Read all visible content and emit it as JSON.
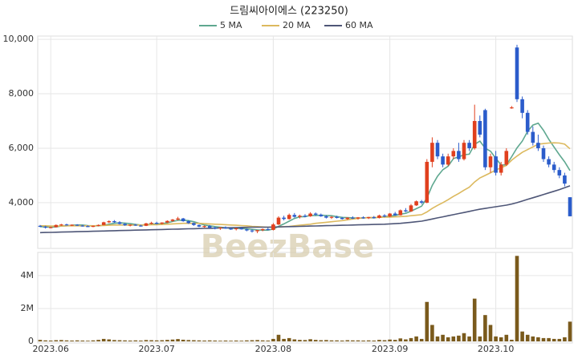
{
  "chart_data": {
    "type": "candlestick",
    "title": "드림씨아이에스 (223250)",
    "watermark": "BeezBase",
    "categories": [
      null,
      null,
      "2023.06",
      null,
      null,
      null,
      null,
      null,
      null,
      null,
      null,
      null,
      null,
      null,
      null,
      null,
      null,
      null,
      null,
      null,
      null,
      null,
      "2023.07",
      null,
      null,
      null,
      null,
      null,
      null,
      null,
      null,
      null,
      null,
      null,
      null,
      null,
      null,
      null,
      null,
      null,
      null,
      null,
      null,
      null,
      "2023.08",
      null,
      null,
      null,
      null,
      null,
      null,
      null,
      null,
      null,
      null,
      null,
      null,
      null,
      null,
      null,
      null,
      null,
      null,
      null,
      null,
      null,
      "2023.09",
      null,
      null,
      null,
      null,
      null,
      null,
      null,
      null,
      null,
      null,
      null,
      null,
      null,
      null,
      null,
      null,
      null,
      null,
      null,
      "2023.10",
      null,
      null,
      null,
      null,
      null,
      null,
      null,
      null,
      null,
      null,
      null,
      null,
      null,
      null
    ],
    "up_color": "#e0401e",
    "down_color": "#2b5ccb",
    "ohlc": [
      [
        3150,
        3180,
        3100,
        3120
      ],
      [
        3120,
        3150,
        3050,
        3080
      ],
      [
        3080,
        3120,
        3060,
        3100
      ],
      [
        3100,
        3200,
        3090,
        3180
      ],
      [
        3180,
        3220,
        3150,
        3200
      ],
      [
        3200,
        3230,
        3160,
        3170
      ],
      [
        3170,
        3200,
        3140,
        3190
      ],
      [
        3190,
        3210,
        3150,
        3160
      ],
      [
        3160,
        3180,
        3120,
        3140
      ],
      [
        3140,
        3170,
        3100,
        3110
      ],
      [
        3110,
        3160,
        3100,
        3150
      ],
      [
        3150,
        3200,
        3130,
        3180
      ],
      [
        3180,
        3300,
        3170,
        3280
      ],
      [
        3280,
        3350,
        3250,
        3320
      ],
      [
        3320,
        3360,
        3260,
        3280
      ],
      [
        3280,
        3320,
        3200,
        3220
      ],
      [
        3220,
        3250,
        3150,
        3170
      ],
      [
        3170,
        3200,
        3130,
        3190
      ],
      [
        3190,
        3220,
        3150,
        3160
      ],
      [
        3160,
        3190,
        3120,
        3150
      ],
      [
        3150,
        3260,
        3140,
        3240
      ],
      [
        3240,
        3300,
        3200,
        3260
      ],
      [
        3260,
        3300,
        3200,
        3230
      ],
      [
        3230,
        3280,
        3200,
        3270
      ],
      [
        3270,
        3350,
        3250,
        3330
      ],
      [
        3330,
        3400,
        3300,
        3380
      ],
      [
        3380,
        3480,
        3350,
        3420
      ],
      [
        3420,
        3440,
        3300,
        3320
      ],
      [
        3320,
        3350,
        3220,
        3250
      ],
      [
        3250,
        3270,
        3150,
        3180
      ],
      [
        3180,
        3200,
        3100,
        3120
      ],
      [
        3120,
        3160,
        3080,
        3140
      ],
      [
        3140,
        3180,
        3060,
        3080
      ],
      [
        3080,
        3120,
        3020,
        3060
      ],
      [
        3060,
        3100,
        3000,
        3090
      ],
      [
        3090,
        3130,
        3040,
        3050
      ],
      [
        3050,
        3080,
        3000,
        3030
      ],
      [
        3030,
        3070,
        2980,
        3060
      ],
      [
        3060,
        3090,
        3010,
        3020
      ],
      [
        3020,
        3050,
        2950,
        2980
      ],
      [
        2980,
        3020,
        2900,
        2950
      ],
      [
        2950,
        3000,
        2880,
        2990
      ],
      [
        2990,
        3050,
        2950,
        3030
      ],
      [
        3030,
        3080,
        2990,
        3000
      ],
      [
        3000,
        3250,
        2980,
        3200
      ],
      [
        3200,
        3500,
        3180,
        3450
      ],
      [
        3450,
        3520,
        3350,
        3400
      ],
      [
        3400,
        3600,
        3380,
        3550
      ],
      [
        3550,
        3620,
        3450,
        3480
      ],
      [
        3480,
        3560,
        3420,
        3520
      ],
      [
        3520,
        3580,
        3460,
        3500
      ],
      [
        3500,
        3650,
        3480,
        3600
      ],
      [
        3600,
        3640,
        3520,
        3560
      ],
      [
        3560,
        3600,
        3480,
        3500
      ],
      [
        3500,
        3540,
        3420,
        3450
      ],
      [
        3450,
        3500,
        3400,
        3480
      ],
      [
        3480,
        3520,
        3420,
        3440
      ],
      [
        3440,
        3480,
        3380,
        3400
      ],
      [
        3400,
        3460,
        3370,
        3450
      ],
      [
        3450,
        3500,
        3400,
        3420
      ],
      [
        3420,
        3470,
        3380,
        3460
      ],
      [
        3460,
        3500,
        3410,
        3430
      ],
      [
        3430,
        3480,
        3400,
        3470
      ],
      [
        3470,
        3510,
        3420,
        3440
      ],
      [
        3440,
        3560,
        3420,
        3530
      ],
      [
        3530,
        3580,
        3460,
        3490
      ],
      [
        3490,
        3620,
        3470,
        3600
      ],
      [
        3600,
        3660,
        3520,
        3540
      ],
      [
        3540,
        3750,
        3530,
        3720
      ],
      [
        3720,
        3800,
        3650,
        3680
      ],
      [
        3680,
        3950,
        3660,
        3900
      ],
      [
        3900,
        4080,
        3880,
        4050
      ],
      [
        4050,
        4100,
        3950,
        4000
      ],
      [
        4000,
        5600,
        3980,
        5500
      ],
      [
        5500,
        6400,
        5300,
        6200
      ],
      [
        6200,
        6300,
        5600,
        5700
      ],
      [
        5700,
        5800,
        5300,
        5400
      ],
      [
        5400,
        5800,
        5350,
        5700
      ],
      [
        5700,
        6000,
        5600,
        5900
      ],
      [
        5900,
        6200,
        5500,
        5600
      ],
      [
        5600,
        6300,
        5550,
        6200
      ],
      [
        6200,
        6300,
        5900,
        6000
      ],
      [
        6000,
        7600,
        5950,
        7000
      ],
      [
        7000,
        7200,
        6400,
        6500
      ],
      [
        7400,
        7450,
        5200,
        5300
      ],
      [
        5300,
        5800,
        5100,
        5700
      ],
      [
        5700,
        5900,
        5000,
        5100
      ],
      [
        5100,
        5500,
        5000,
        5400
      ],
      [
        5400,
        6000,
        5350,
        5900
      ],
      [
        7500,
        7550,
        7450,
        7500
      ],
      [
        9700,
        9800,
        7700,
        7800
      ],
      [
        7800,
        7900,
        7100,
        7300
      ],
      [
        7300,
        7400,
        6500,
        6600
      ],
      [
        6600,
        6800,
        6100,
        6200
      ],
      [
        6200,
        6500,
        5900,
        6000
      ],
      [
        6000,
        6100,
        5500,
        5600
      ],
      [
        5600,
        5700,
        5300,
        5400
      ],
      [
        5400,
        5500,
        5100,
        5200
      ],
      [
        5200,
        5300,
        4900,
        5000
      ],
      [
        5000,
        5100,
        4600,
        4700
      ],
      [
        4200,
        4200,
        3500,
        3500
      ]
    ],
    "series": [
      {
        "name": "5 MA",
        "color": "#5fa890",
        "values": [
          3120,
          3110,
          3100,
          3110,
          3140,
          3150,
          3170,
          3180,
          3180,
          3160,
          3150,
          3150,
          3170,
          3210,
          3240,
          3260,
          3250,
          3230,
          3200,
          3180,
          3190,
          3210,
          3220,
          3230,
          3260,
          3310,
          3350,
          3360,
          3340,
          3300,
          3240,
          3180,
          3150,
          3120,
          3100,
          3080,
          3060,
          3060,
          3050,
          3040,
          3020,
          3000,
          2990,
          2990,
          3030,
          3130,
          3220,
          3320,
          3420,
          3480,
          3490,
          3530,
          3530,
          3540,
          3530,
          3520,
          3490,
          3460,
          3450,
          3440,
          3430,
          3440,
          3450,
          3440,
          3470,
          3480,
          3510,
          3530,
          3580,
          3610,
          3690,
          3780,
          3870,
          4170,
          4630,
          4970,
          5210,
          5340,
          5620,
          5680,
          5760,
          5780,
          6140,
          6260,
          6000,
          5890,
          5630,
          5380,
          5390,
          5690,
          6010,
          6260,
          6620,
          6850,
          6920,
          6660,
          6330,
          6040,
          5760,
          5500,
          5180
        ]
      },
      {
        "name": "20 MA",
        "color": "#dcb95e",
        "values": [
          3150,
          3150,
          3140,
          3140,
          3140,
          3150,
          3150,
          3150,
          3150,
          3150,
          3150,
          3160,
          3160,
          3170,
          3180,
          3180,
          3180,
          3180,
          3180,
          3180,
          3180,
          3190,
          3190,
          3200,
          3210,
          3220,
          3230,
          3240,
          3240,
          3240,
          3240,
          3230,
          3220,
          3210,
          3200,
          3190,
          3180,
          3170,
          3160,
          3150,
          3130,
          3120,
          3110,
          3100,
          3100,
          3110,
          3120,
          3130,
          3150,
          3170,
          3190,
          3210,
          3240,
          3260,
          3280,
          3300,
          3320,
          3340,
          3370,
          3400,
          3420,
          3440,
          3450,
          3460,
          3460,
          3470,
          3470,
          3480,
          3490,
          3500,
          3520,
          3540,
          3560,
          3660,
          3790,
          3900,
          4000,
          4110,
          4230,
          4340,
          4460,
          4570,
          4760,
          4910,
          5000,
          5100,
          5200,
          5280,
          5370,
          5560,
          5710,
          5850,
          5950,
          6050,
          6150,
          6170,
          6190,
          6200,
          6190,
          6150,
          5980
        ]
      },
      {
        "name": "60 MA",
        "color": "#4e5677",
        "values": [
          2900,
          2905,
          2910,
          2915,
          2920,
          2925,
          2930,
          2935,
          2940,
          2945,
          2950,
          2955,
          2960,
          2965,
          2970,
          2975,
          2980,
          2985,
          2990,
          2995,
          3000,
          3005,
          3010,
          3015,
          3020,
          3025,
          3030,
          3035,
          3040,
          3045,
          3050,
          3055,
          3060,
          3065,
          3070,
          3075,
          3080,
          3085,
          3090,
          3095,
          3100,
          3100,
          3100,
          3100,
          3105,
          3110,
          3115,
          3120,
          3125,
          3130,
          3135,
          3140,
          3145,
          3150,
          3155,
          3160,
          3165,
          3170,
          3175,
          3180,
          3185,
          3190,
          3195,
          3200,
          3205,
          3210,
          3220,
          3230,
          3240,
          3260,
          3280,
          3300,
          3320,
          3360,
          3400,
          3440,
          3480,
          3520,
          3560,
          3600,
          3640,
          3680,
          3720,
          3760,
          3790,
          3820,
          3850,
          3880,
          3910,
          3950,
          4000,
          4060,
          4120,
          4180,
          4240,
          4300,
          4360,
          4420,
          4480,
          4550,
          4620
        ]
      }
    ],
    "ylim": [
      2320,
      10120
    ],
    "yticks": [
      {
        "value": 4000,
        "label": "4,000"
      },
      {
        "value": 6000,
        "label": "6,000"
      },
      {
        "value": 8000,
        "label": "8,000"
      },
      {
        "value": 10000,
        "label": "10,000"
      }
    ],
    "grid": true,
    "volume": {
      "color": "#7a5a1c",
      "values": [
        90000,
        60000,
        50000,
        70000,
        80000,
        60000,
        50000,
        60000,
        50000,
        40000,
        60000,
        90000,
        150000,
        120000,
        80000,
        70000,
        60000,
        50000,
        60000,
        50000,
        80000,
        70000,
        60000,
        70000,
        90000,
        110000,
        140000,
        100000,
        80000,
        70000,
        60000,
        50000,
        60000,
        50000,
        40000,
        50000,
        40000,
        50000,
        40000,
        60000,
        70000,
        80000,
        60000,
        50000,
        150000,
        400000,
        150000,
        200000,
        120000,
        90000,
        80000,
        130000,
        90000,
        70000,
        80000,
        60000,
        60000,
        50000,
        70000,
        60000,
        60000,
        50000,
        60000,
        50000,
        90000,
        70000,
        110000,
        90000,
        180000,
        120000,
        200000,
        300000,
        150000,
        2400000,
        1000000,
        300000,
        400000,
        250000,
        300000,
        350000,
        500000,
        300000,
        2600000,
        300000,
        1600000,
        1000000,
        300000,
        250000,
        400000,
        100000,
        5200000,
        600000,
        400000,
        300000,
        250000,
        200000,
        200000,
        150000,
        150000,
        250000,
        1200000
      ],
      "ylim": [
        0,
        5410000
      ],
      "yticks": [
        0,
        {
          "value": 2000000,
          "label": "2M"
        },
        {
          "value": 4000000,
          "label": "4M"
        }
      ]
    }
  }
}
